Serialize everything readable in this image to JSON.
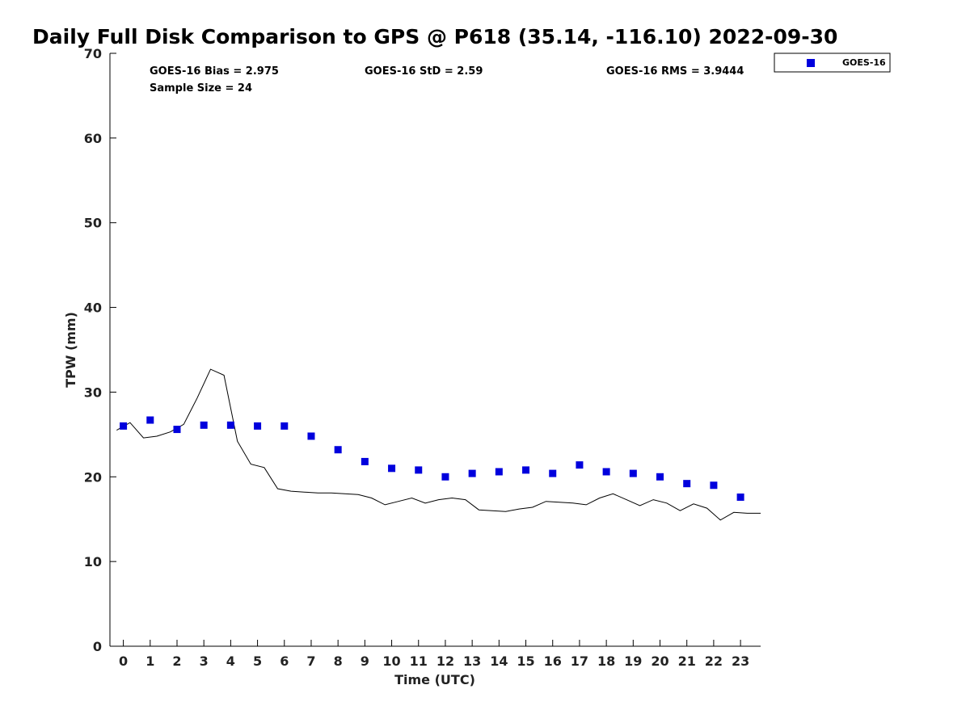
{
  "chart_data": {
    "type": "scatter",
    "title": "Daily Full Disk Comparison to GPS @ P618 (35.14, -116.10) 2022-09-30",
    "xlabel": "Time (UTC)",
    "ylabel": "TPW (mm)",
    "xlim": [
      -0.5,
      23.75
    ],
    "ylim": [
      0,
      70
    ],
    "x_ticks": [
      "0",
      "1",
      "2",
      "3",
      "4",
      "5",
      "6",
      "7",
      "8",
      "9",
      "10",
      "11",
      "12",
      "13",
      "14",
      "15",
      "16",
      "17",
      "18",
      "19",
      "20",
      "21",
      "22",
      "23"
    ],
    "y_ticks": [
      "0",
      "10",
      "20",
      "30",
      "40",
      "50",
      "60",
      "70"
    ],
    "grid": false,
    "legend_position": "top-right, outside plot",
    "stats": {
      "bias": "GOES-16 Bias = 2.975",
      "std": "GOES-16 StD = 2.59",
      "rms": "GOES-16 RMS = 3.9444",
      "sample": "Sample Size = 24"
    },
    "series": [
      {
        "name": "GOES-16",
        "kind": "scatter",
        "color": "#0000dd",
        "marker": "square",
        "x": [
          0,
          1,
          2,
          3,
          4,
          5,
          6,
          7,
          8,
          9,
          10,
          11,
          12,
          13,
          14,
          15,
          16,
          17,
          18,
          19,
          20,
          21,
          22,
          23
        ],
        "y": [
          26.0,
          26.7,
          25.6,
          26.1,
          26.1,
          26.0,
          26.0,
          24.8,
          23.2,
          21.8,
          21.0,
          20.8,
          20.0,
          20.4,
          20.6,
          20.8,
          20.4,
          21.4,
          20.6,
          20.4,
          20.0,
          19.2,
          19.0,
          17.6
        ]
      },
      {
        "kind": "line",
        "color": "#000000",
        "x": [
          -0.25,
          0.25,
          0.75,
          1.25,
          1.75,
          2.25,
          2.75,
          3.25,
          3.75,
          4.25,
          4.75,
          5.25,
          5.75,
          6.25,
          6.75,
          7.25,
          7.75,
          8.25,
          8.75,
          9.25,
          9.75,
          10.25,
          10.75,
          11.25,
          11.75,
          12.25,
          12.75,
          13.25,
          13.75,
          14.25,
          14.75,
          15.25,
          15.75,
          16.25,
          16.75,
          17.25,
          17.75,
          18.25,
          18.75,
          19.25,
          19.75,
          20.25,
          20.75,
          21.25,
          21.75,
          22.25,
          22.75,
          23.25,
          23.75
        ],
        "y": [
          25.5,
          26.4,
          24.6,
          24.8,
          25.3,
          26.2,
          29.3,
          32.7,
          32.0,
          24.2,
          21.5,
          21.1,
          18.6,
          18.3,
          18.2,
          18.1,
          18.1,
          18.0,
          17.9,
          17.5,
          16.7,
          17.1,
          17.5,
          16.9,
          17.3,
          17.5,
          17.3,
          16.1,
          16.0,
          15.9,
          16.2,
          16.4,
          17.1,
          17.0,
          16.9,
          16.7,
          17.5,
          18.0,
          17.3,
          16.6,
          17.3,
          16.9,
          16.0,
          16.8,
          16.3,
          14.9,
          15.8,
          15.7,
          15.7
        ]
      }
    ]
  }
}
